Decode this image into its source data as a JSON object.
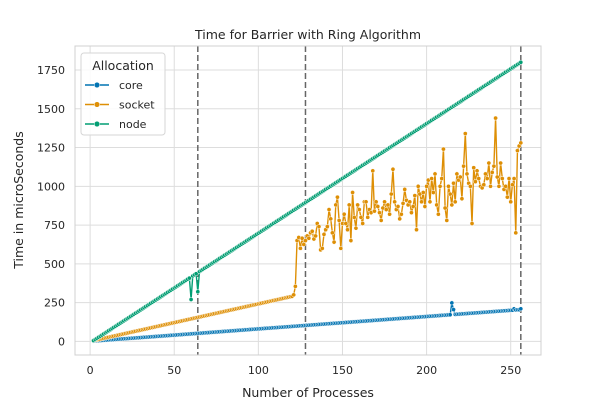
{
  "chart_data": {
    "type": "line",
    "title": "Time for Barrier with Ring Algorithm",
    "xlabel": "Number of Processes",
    "ylabel": "Time in microSeconds",
    "xlim": [
      -9,
      268
    ],
    "ylim": [
      -88,
      1905
    ],
    "xticks": [
      0,
      50,
      100,
      150,
      200,
      250
    ],
    "yticks": [
      0,
      250,
      500,
      750,
      1000,
      1250,
      1500,
      1750
    ],
    "grid": true,
    "legend": {
      "title": "Allocation",
      "placement": "top-left",
      "entries": [
        "core",
        "socket",
        "node"
      ]
    },
    "vlines": [
      64,
      128,
      256
    ],
    "colors": {
      "core": "#0173b2",
      "socket": "#de8f05",
      "node": "#029e73",
      "vline": "#666666"
    },
    "series": [
      {
        "name": "core",
        "color": "#0173b2",
        "x_from": 2,
        "x_to": 256,
        "y_at_start": 2,
        "y_at_end": 205,
        "points": [
          [
            215,
            248
          ],
          [
            216,
            205
          ],
          [
            252,
            210
          ],
          [
            256,
            210
          ]
        ]
      },
      {
        "name": "socket",
        "color": "#de8f05",
        "x_from": 2,
        "x_to": 256,
        "segment_1": {
          "x_from": 2,
          "x_to": 120,
          "y_at_start": 5,
          "y_at_end": 290
        },
        "points": [
          [
            121,
            300
          ],
          [
            122,
            355
          ],
          [
            123,
            650
          ],
          [
            124,
            670
          ],
          [
            125,
            600
          ],
          [
            126,
            665
          ],
          [
            127,
            625
          ],
          [
            128,
            650
          ],
          [
            129,
            680
          ],
          [
            130,
            665
          ],
          [
            131,
            700
          ],
          [
            132,
            710
          ],
          [
            133,
            660
          ],
          [
            134,
            680
          ],
          [
            135,
            760
          ],
          [
            136,
            740
          ],
          [
            137,
            590
          ],
          [
            138,
            600
          ],
          [
            139,
            690
          ],
          [
            140,
            720
          ],
          [
            141,
            740
          ],
          [
            142,
            850
          ],
          [
            143,
            790
          ],
          [
            144,
            700
          ],
          [
            145,
            640
          ],
          [
            146,
            880
          ],
          [
            147,
            930
          ],
          [
            148,
            780
          ],
          [
            149,
            600
          ],
          [
            150,
            760
          ],
          [
            151,
            820
          ],
          [
            152,
            760
          ],
          [
            153,
            720
          ],
          [
            154,
            880
          ],
          [
            155,
            650
          ],
          [
            156,
            960
          ],
          [
            157,
            800
          ],
          [
            158,
            730
          ],
          [
            159,
            880
          ],
          [
            160,
            850
          ],
          [
            161,
            800
          ],
          [
            162,
            760
          ],
          [
            163,
            900
          ],
          [
            164,
            900
          ],
          [
            165,
            800
          ],
          [
            166,
            850
          ],
          [
            167,
            830
          ],
          [
            168,
            1100
          ],
          [
            169,
            840
          ],
          [
            170,
            900
          ],
          [
            171,
            870
          ],
          [
            172,
            830
          ],
          [
            173,
            780
          ],
          [
            174,
            860
          ],
          [
            175,
            900
          ],
          [
            176,
            850
          ],
          [
            177,
            880
          ],
          [
            178,
            820
          ],
          [
            179,
            950
          ],
          [
            180,
            1110
          ],
          [
            181,
            900
          ],
          [
            182,
            850
          ],
          [
            183,
            870
          ],
          [
            184,
            790
          ],
          [
            185,
            820
          ],
          [
            186,
            890
          ],
          [
            187,
            980
          ],
          [
            188,
            910
          ],
          [
            189,
            880
          ],
          [
            190,
            900
          ],
          [
            191,
            830
          ],
          [
            192,
            870
          ],
          [
            193,
            940
          ],
          [
            194,
            720
          ],
          [
            195,
            1000
          ],
          [
            196,
            950
          ],
          [
            197,
            900
          ],
          [
            198,
            960
          ],
          [
            199,
            870
          ],
          [
            200,
            1000
          ],
          [
            201,
            1040
          ],
          [
            202,
            900
          ],
          [
            203,
            1050
          ],
          [
            204,
            960
          ],
          [
            205,
            1080
          ],
          [
            206,
            880
          ],
          [
            207,
            820
          ],
          [
            208,
            1000
          ],
          [
            209,
            1050
          ],
          [
            210,
            1240
          ],
          [
            211,
            860
          ],
          [
            212,
            780
          ],
          [
            213,
            1000
          ],
          [
            214,
            950
          ],
          [
            215,
            880
          ],
          [
            216,
            1020
          ],
          [
            217,
            900
          ],
          [
            218,
            1080
          ],
          [
            219,
            1040
          ],
          [
            220,
            1060
          ],
          [
            221,
            920
          ],
          [
            222,
            1130
          ],
          [
            223,
            1340
          ],
          [
            224,
            1080
          ],
          [
            225,
            1020
          ],
          [
            226,
            1000
          ],
          [
            227,
            760
          ],
          [
            228,
            1120
          ],
          [
            229,
            1030
          ],
          [
            230,
            1100
          ],
          [
            231,
            1050
          ],
          [
            232,
            1000
          ],
          [
            233,
            990
          ],
          [
            234,
            1010
          ],
          [
            235,
            1080
          ],
          [
            236,
            1050
          ],
          [
            237,
            1150
          ],
          [
            238,
            1000
          ],
          [
            239,
            1090
          ],
          [
            240,
            1130
          ],
          [
            241,
            1440
          ],
          [
            242,
            1060
          ],
          [
            243,
            1000
          ],
          [
            244,
            1150
          ],
          [
            245,
            1050
          ],
          [
            246,
            980
          ],
          [
            247,
            1000
          ],
          [
            248,
            930
          ],
          [
            249,
            1050
          ],
          [
            250,
            900
          ],
          [
            251,
            1010
          ],
          [
            252,
            1050
          ],
          [
            253,
            700
          ],
          [
            254,
            1230
          ],
          [
            255,
            1260
          ],
          [
            256,
            1280
          ]
        ]
      },
      {
        "name": "node",
        "color": "#029e73",
        "x_from": 2,
        "x_to": 256,
        "y_at_start": 5,
        "y_at_end": 1800,
        "points": [
          [
            60,
            270
          ],
          [
            64,
            320
          ],
          [
            256,
            1800
          ]
        ]
      }
    ]
  }
}
